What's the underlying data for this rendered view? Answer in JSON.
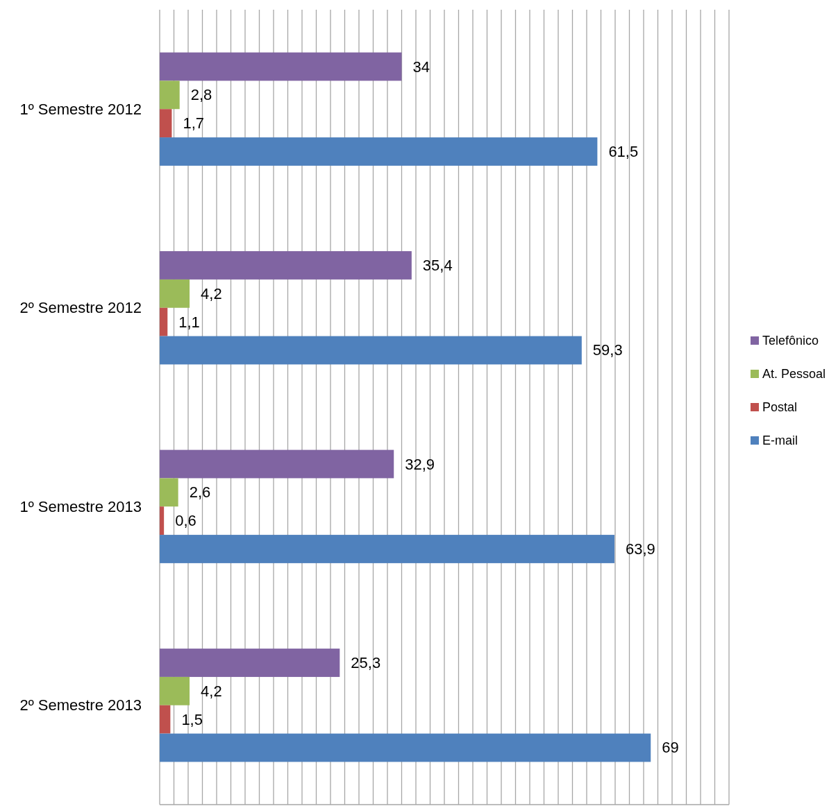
{
  "chart_data": {
    "type": "bar",
    "orientation": "horizontal",
    "categories": [
      "1º Semestre 2012",
      "2º Semestre 2012",
      "1º Semestre 2013",
      "2º Semestre 2013"
    ],
    "series": [
      {
        "name": "Telefônico",
        "color": "#8064a2",
        "values": [
          34,
          35.4,
          32.9,
          25.3
        ],
        "value_labels": [
          "34",
          "35,4",
          "32,9",
          "25,3"
        ]
      },
      {
        "name": "At. Pessoal",
        "color": "#9bbb59",
        "values": [
          2.8,
          4.2,
          2.6,
          4.2
        ],
        "value_labels": [
          "2,8",
          "4,2",
          "2,6",
          "4,2"
        ]
      },
      {
        "name": "Postal",
        "color": "#c0504d",
        "values": [
          1.7,
          1.1,
          0.6,
          1.5
        ],
        "value_labels": [
          "1,7",
          "1,1",
          "0,6",
          "1,5"
        ]
      },
      {
        "name": "E-mail",
        "color": "#4f81bd",
        "values": [
          61.5,
          59.3,
          63.9,
          69
        ],
        "value_labels": [
          "61,5",
          "59,3",
          "63,9",
          "69"
        ]
      }
    ],
    "xlim": [
      0,
      80
    ],
    "xticks": [
      {
        "value": 0,
        "label": null
      },
      {
        "value": 2,
        "label": null
      },
      {
        "value": 4,
        "label": null
      },
      {
        "value": 6,
        "label": null
      },
      {
        "value": 8,
        "label": null
      },
      {
        "value": 10,
        "label": null
      },
      {
        "value": 12,
        "label": null
      },
      {
        "value": 14,
        "label": null
      },
      {
        "value": 16,
        "label": null
      },
      {
        "value": 18,
        "label": null
      },
      {
        "value": 20,
        "label": null
      },
      {
        "value": 22,
        "label": null
      },
      {
        "value": 24,
        "label": null
      },
      {
        "value": 26,
        "label": null
      },
      {
        "value": 28,
        "label": null
      },
      {
        "value": 30,
        "label": null
      },
      {
        "value": 32,
        "label": null
      },
      {
        "value": 34,
        "label": null
      },
      {
        "value": 36,
        "label": null
      },
      {
        "value": 38,
        "label": null
      },
      {
        "value": 40,
        "label": null
      },
      {
        "value": 42,
        "label": null
      },
      {
        "value": 44,
        "label": null
      },
      {
        "value": 46,
        "label": null
      },
      {
        "value": 48,
        "label": null
      },
      {
        "value": 50,
        "label": null
      },
      {
        "value": 52,
        "label": null
      },
      {
        "value": 54,
        "label": null
      },
      {
        "value": 56,
        "label": null
      },
      {
        "value": 58,
        "label": null
      },
      {
        "value": 60,
        "label": null
      },
      {
        "value": 62,
        "label": null
      },
      {
        "value": 64,
        "label": null
      },
      {
        "value": 66,
        "label": null
      },
      {
        "value": 68,
        "label": null
      },
      {
        "value": 70,
        "label": null
      },
      {
        "value": 72,
        "label": null
      },
      {
        "value": 74,
        "label": null
      },
      {
        "value": 76,
        "label": null
      },
      {
        "value": 78,
        "label": null
      },
      {
        "value": 80,
        "label": null
      }
    ],
    "grid": "x",
    "tick_labels": "y",
    "legend": "right"
  }
}
